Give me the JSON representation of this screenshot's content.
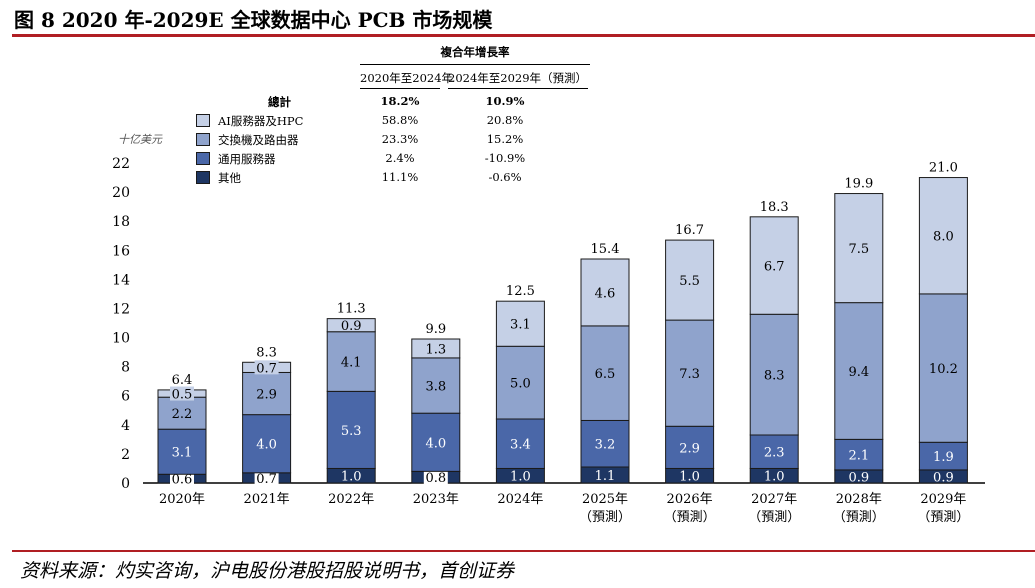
{
  "title": "图  8 2020 年-2029E 全球数据中心 PCB 市场规模",
  "source": "资料来源：灼实咨询，沪电股份港股招股说明书，首创证券",
  "colors": {
    "accent": "#b01e23",
    "ai": "#c5d0e6",
    "switch": "#8fa3cc",
    "server": "#4a67a8",
    "other": "#1e3663"
  },
  "chart_data": {
    "type": "bar",
    "stacked": true,
    "unit_label": "十亿美元",
    "ylim": [
      0,
      22
    ],
    "yticks": [
      0,
      2,
      4,
      6,
      8,
      10,
      12,
      14,
      16,
      18,
      20,
      22
    ],
    "categories": [
      "2020年",
      "2021年",
      "2022年",
      "2023年",
      "2024年",
      "2025年",
      "2026年",
      "2027年",
      "2028年",
      "2029年"
    ],
    "category_notes": [
      "",
      "",
      "",
      "",
      "",
      "（預測）",
      "（預測）",
      "（預測）",
      "（預測）",
      "（預測）"
    ],
    "series": [
      {
        "name": "其他",
        "color_key": "other",
        "values": [
          0.6,
          0.7,
          1.0,
          0.8,
          1.0,
          1.1,
          1.0,
          1.0,
          0.9,
          0.9
        ]
      },
      {
        "name": "通用服務器",
        "color_key": "server",
        "values": [
          3.1,
          4.0,
          5.3,
          4.0,
          3.4,
          3.2,
          2.9,
          2.3,
          2.1,
          1.9
        ]
      },
      {
        "name": "交換機及路由器",
        "color_key": "switch",
        "values": [
          2.2,
          2.9,
          4.1,
          3.8,
          5.0,
          6.5,
          7.3,
          8.3,
          9.4,
          10.2
        ]
      },
      {
        "name": "AI服務器及HPC",
        "color_key": "ai",
        "values": [
          0.5,
          0.7,
          0.9,
          1.3,
          3.1,
          4.6,
          5.5,
          6.7,
          7.5,
          8.0
        ]
      }
    ],
    "totals": [
      6.4,
      8.3,
      11.3,
      9.9,
      12.5,
      15.4,
      16.7,
      18.3,
      19.9,
      21.0
    ],
    "cagr_table": {
      "header": "複合年增長率",
      "col1": "2020年至2024年",
      "col2": "2024年至2029年（預測）",
      "rows": [
        {
          "label": "總計",
          "v1": "18.2%",
          "v2": "10.9%",
          "total": true
        },
        {
          "label": "AI服務器及HPC",
          "v1": "58.8%",
          "v2": "20.8%",
          "color_key": "ai"
        },
        {
          "label": "交換機及路由器",
          "v1": "23.3%",
          "v2": "15.2%",
          "color_key": "switch"
        },
        {
          "label": "通用服務器",
          "v1": "2.4%",
          "v2": "-10.9%",
          "color_key": "server"
        },
        {
          "label": "其他",
          "v1": "11.1%",
          "v2": "-0.6%",
          "color_key": "other"
        }
      ]
    }
  }
}
